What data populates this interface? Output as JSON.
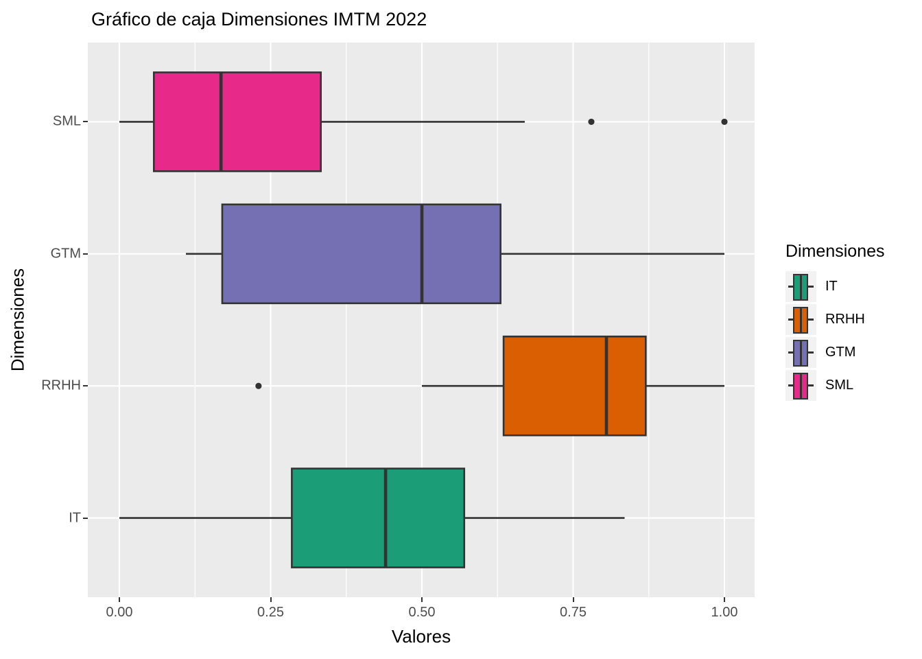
{
  "title": "Gráfico de caja Dimensiones IMTM 2022",
  "chart_data": {
    "type": "boxplot",
    "orientation": "horizontal",
    "title": "Gráfico de caja Dimensiones IMTM 2022",
    "xlabel": "Valores",
    "ylabel": "Dimensiones",
    "xlim": [
      0,
      1
    ],
    "x_major_ticks": [
      0,
      0.25,
      0.5,
      0.75,
      1.0
    ],
    "x_tick_labels": [
      "0.00",
      "0.25",
      "0.50",
      "0.75",
      "1.00"
    ],
    "x_minor_ticks": [
      0.125,
      0.375,
      0.625,
      0.875
    ],
    "categories_top_to_bottom": [
      "SML",
      "GTM",
      "RRHH",
      "IT"
    ],
    "series": [
      {
        "name": "SML",
        "color": "#E7298A",
        "min": 0.0,
        "q1": 0.057,
        "median": 0.168,
        "q3": 0.333,
        "max": 0.67,
        "outliers": [
          0.78,
          1.0
        ]
      },
      {
        "name": "GTM",
        "color": "#7570B3",
        "min": 0.11,
        "q1": 0.17,
        "median": 0.5,
        "q3": 0.63,
        "max": 1.0,
        "outliers": []
      },
      {
        "name": "RRHH",
        "color": "#D95F02",
        "min": 0.5,
        "q1": 0.635,
        "median": 0.805,
        "q3": 0.87,
        "max": 1.0,
        "outliers": [
          0.23
        ]
      },
      {
        "name": "IT",
        "color": "#1B9E77",
        "min": 0.0,
        "q1": 0.285,
        "median": 0.44,
        "q3": 0.57,
        "max": 0.835,
        "outliers": []
      }
    ],
    "legend": {
      "title": "Dimensiones",
      "position": "right",
      "entries": [
        {
          "label": "IT",
          "color": "#1B9E77"
        },
        {
          "label": "RRHH",
          "color": "#D95F02"
        },
        {
          "label": "GTM",
          "color": "#7570B3"
        },
        {
          "label": "SML",
          "color": "#E7298A"
        }
      ]
    },
    "grid": true,
    "panel_background": "#EBEBEB",
    "gridline_color": "#FFFFFF",
    "box_line_color": "#333333",
    "tick_label_color": "#4D4D4D"
  }
}
